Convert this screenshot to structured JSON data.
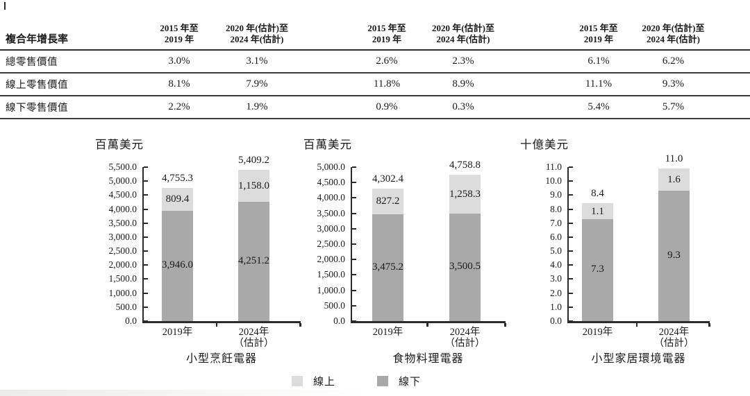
{
  "table": {
    "row_header": "複合年增長率",
    "col_headers": [
      [
        "2015 年至",
        "2019 年"
      ],
      [
        "2020 年(估計)至",
        "2024 年(估計)"
      ],
      [
        "2015 年至",
        "2019 年"
      ],
      [
        "2020 年(估計)至",
        "2024 年(估計)"
      ],
      [
        "2015 年至",
        "2019 年"
      ],
      [
        "2020 年(估計)至",
        "2024 年(估計)"
      ]
    ],
    "rows": [
      {
        "label": "總零售價值",
        "values": [
          "3.0%",
          "3.1%",
          "2.6%",
          "2.3%",
          "6.1%",
          "6.2%"
        ]
      },
      {
        "label": "線上零售價值",
        "values": [
          "8.1%",
          "7.9%",
          "11.8%",
          "8.9%",
          "11.1%",
          "9.3%"
        ]
      },
      {
        "label": "線下零售價值",
        "values": [
          "2.2%",
          "1.9%",
          "0.9%",
          "0.3%",
          "5.4%",
          "5.7%"
        ]
      }
    ]
  },
  "colors": {
    "online": "#dcdcdc",
    "offline": "#a9a9a9",
    "axis": "#2a2a2a"
  },
  "legend": {
    "items": [
      {
        "label": "線上",
        "color": "#dcdcdc"
      },
      {
        "label": "線下",
        "color": "#a9a9a9"
      }
    ]
  },
  "chart_data": [
    {
      "type": "bar",
      "stacked": true,
      "title": "小型烹飪電器",
      "unit": "百萬美元",
      "categories": [
        "2019年",
        "2024年\n（估計）"
      ],
      "series": [
        {
          "name": "線上",
          "values": [
            809.4,
            1158.0
          ]
        },
        {
          "name": "線下",
          "values": [
            3946.0,
            4251.2
          ]
        }
      ],
      "totals": [
        4755.3,
        5409.2
      ],
      "labels": {
        "totals": [
          "4,755.3",
          "5,409.2"
        ],
        "online": [
          "809.4",
          "1,158.0"
        ],
        "offline": [
          "3,946.0",
          "4,251.2"
        ]
      },
      "ylim": [
        0,
        5500
      ],
      "yticks": [
        "5,500.0",
        "5,000.0",
        "4,500.0",
        "4,000.0",
        "3,500.0",
        "3,000.0",
        "2,500.0",
        "2,000.0",
        "1,500.0",
        "1,000.0",
        "500.0",
        "0.0"
      ],
      "grid": false,
      "legend_position": "bottom"
    },
    {
      "type": "bar",
      "stacked": true,
      "title": "食物料理電器",
      "unit": "百萬美元",
      "categories": [
        "2019年",
        "2024年\n（估計）"
      ],
      "series": [
        {
          "name": "線上",
          "values": [
            827.2,
            1258.3
          ]
        },
        {
          "name": "線下",
          "values": [
            3475.2,
            3500.5
          ]
        }
      ],
      "totals": [
        4302.4,
        4758.8
      ],
      "labels": {
        "totals": [
          "4,302.4",
          "4,758.8"
        ],
        "online": [
          "827.2",
          "1,258.3"
        ],
        "offline": [
          "3,475.2",
          "3,500.5"
        ]
      },
      "ylim": [
        0,
        5000
      ],
      "yticks": [
        "5,000.0",
        "4,500.0",
        "4,000.0",
        "3,500.0",
        "3,000.0",
        "2,500.0",
        "2,000.0",
        "1,500.0",
        "1,000.0",
        "500.0",
        "0.0"
      ],
      "grid": false,
      "legend_position": "bottom"
    },
    {
      "type": "bar",
      "stacked": true,
      "title": "小型家居環境電器",
      "unit": "十億美元",
      "categories": [
        "2019年",
        "2024年\n（估計）"
      ],
      "series": [
        {
          "name": "線上",
          "values": [
            1.1,
            1.6
          ]
        },
        {
          "name": "線下",
          "values": [
            7.3,
            9.3
          ]
        }
      ],
      "totals": [
        8.4,
        11.0
      ],
      "labels": {
        "totals": [
          "8.4",
          "11.0"
        ],
        "online": [
          "1.1",
          "1.6"
        ],
        "offline": [
          "7.3",
          "9.3"
        ]
      },
      "ylim": [
        0,
        11
      ],
      "yticks": [
        "11.0",
        "10.0",
        "9.0",
        "8.0",
        "7.0",
        "6.0",
        "5.0",
        "4.0",
        "3.0",
        "2.0",
        "1.0",
        "0.0"
      ],
      "grid": false,
      "legend_position": "bottom"
    }
  ]
}
